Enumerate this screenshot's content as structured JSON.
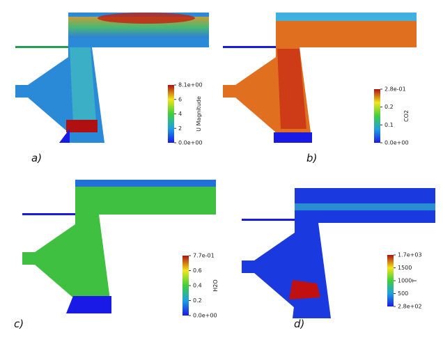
{
  "panels": [
    {
      "label": "a)",
      "colorbar": {
        "title": "U Magnitude",
        "ticks": [
          "8.1e+00",
          "6",
          "4",
          "2",
          "0.0e+00"
        ]
      }
    },
    {
      "label": "b)",
      "colorbar": {
        "title": "CO2",
        "ticks": [
          "2.8e-01",
          "0.2",
          "0.1",
          "0.0e+00"
        ]
      }
    },
    {
      "label": "c)",
      "colorbar": {
        "title": "H2O",
        "ticks": [
          "7.7e-01",
          "0.6",
          "0.4",
          "0.2",
          "0.0e+00"
        ]
      }
    },
    {
      "label": "d)",
      "colorbar": {
        "title": "T",
        "ticks": [
          "1.7e+03",
          "1500",
          "1000",
          "500",
          "2.8e+02"
        ]
      }
    }
  ]
}
